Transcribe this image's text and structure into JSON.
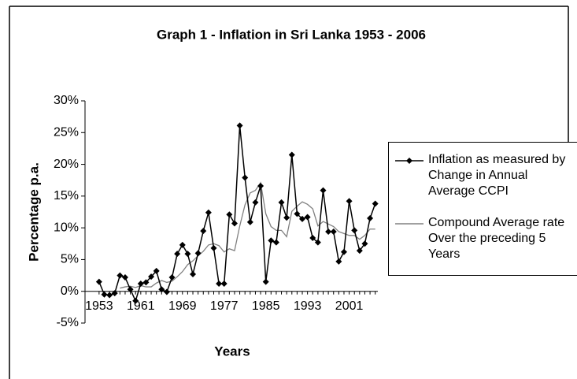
{
  "chart_data": {
    "type": "line",
    "title": "Graph 1 - Inflation in Sri Lanka 1953 - 2006",
    "x_label": "Years",
    "y_label": "Percentage p.a.",
    "x": [
      1953,
      1954,
      1955,
      1956,
      1957,
      1958,
      1959,
      1960,
      1961,
      1962,
      1963,
      1964,
      1965,
      1966,
      1967,
      1968,
      1969,
      1970,
      1971,
      1972,
      1973,
      1974,
      1975,
      1976,
      1977,
      1978,
      1979,
      1980,
      1981,
      1982,
      1983,
      1984,
      1985,
      1986,
      1987,
      1988,
      1989,
      1990,
      1991,
      1992,
      1993,
      1994,
      1995,
      1996,
      1997,
      1998,
      1999,
      2000,
      2001,
      2002,
      2003,
      2004,
      2005,
      2006
    ],
    "series": [
      {
        "name": "Inflation as measured by Change in Annual Average CCPI",
        "color": "#000000",
        "marker": "diamond",
        "values": [
          1.5,
          -0.5,
          -0.6,
          -0.3,
          2.5,
          2.2,
          0.3,
          -1.5,
          1.2,
          1.4,
          2.3,
          3.2,
          0.3,
          -0.1,
          2.2,
          5.9,
          7.3,
          5.9,
          2.7,
          6.0,
          9.5,
          12.4,
          6.8,
          1.2,
          1.2,
          12.1,
          10.7,
          26.1,
          17.9,
          10.9,
          14.0,
          16.6,
          1.5,
          8.0,
          7.7,
          14.0,
          11.6,
          21.5,
          12.2,
          11.4,
          11.7,
          8.4,
          7.7,
          15.9,
          9.4,
          9.4,
          4.7,
          6.2,
          14.2,
          9.6,
          6.4,
          7.5,
          11.5,
          13.8
        ]
      },
      {
        "name": "Compound Average rate Over the preceding 5 Years",
        "color": "#808080",
        "values": [
          null,
          null,
          null,
          null,
          0.5,
          0.7,
          0.8,
          0.6,
          0.9,
          0.7,
          0.7,
          1.3,
          1.7,
          1.4,
          1.6,
          2.3,
          3.1,
          4.2,
          4.8,
          5.6,
          6.3,
          7.3,
          7.5,
          7.2,
          6.2,
          6.7,
          6.4,
          10.3,
          13.6,
          15.5,
          15.9,
          17.1,
          12.2,
          10.2,
          9.6,
          9.6,
          8.6,
          12.6,
          13.4,
          14.1,
          13.7,
          13.0,
          10.3,
          11.0,
          10.6,
          10.2,
          9.4,
          9.1,
          8.8,
          8.8,
          8.2,
          8.8,
          9.8,
          9.8
        ]
      }
    ],
    "xlim": [
      1950.3,
      2006.5
    ],
    "xticks": [
      1953,
      1961,
      1969,
      1977,
      1985,
      1993,
      2001
    ],
    "ylim": [
      -5,
      30
    ],
    "yticks": [
      {
        "value": -5,
        "label": "-5%"
      },
      {
        "value": 0,
        "label": "0%"
      },
      {
        "value": 5,
        "label": "5%"
      },
      {
        "value": 10,
        "label": "10%"
      },
      {
        "value": 15,
        "label": "15%"
      },
      {
        "value": 20,
        "label": "20%"
      },
      {
        "value": 25,
        "label": "25%"
      },
      {
        "value": 30,
        "label": "30%"
      }
    ],
    "legend": "right"
  }
}
